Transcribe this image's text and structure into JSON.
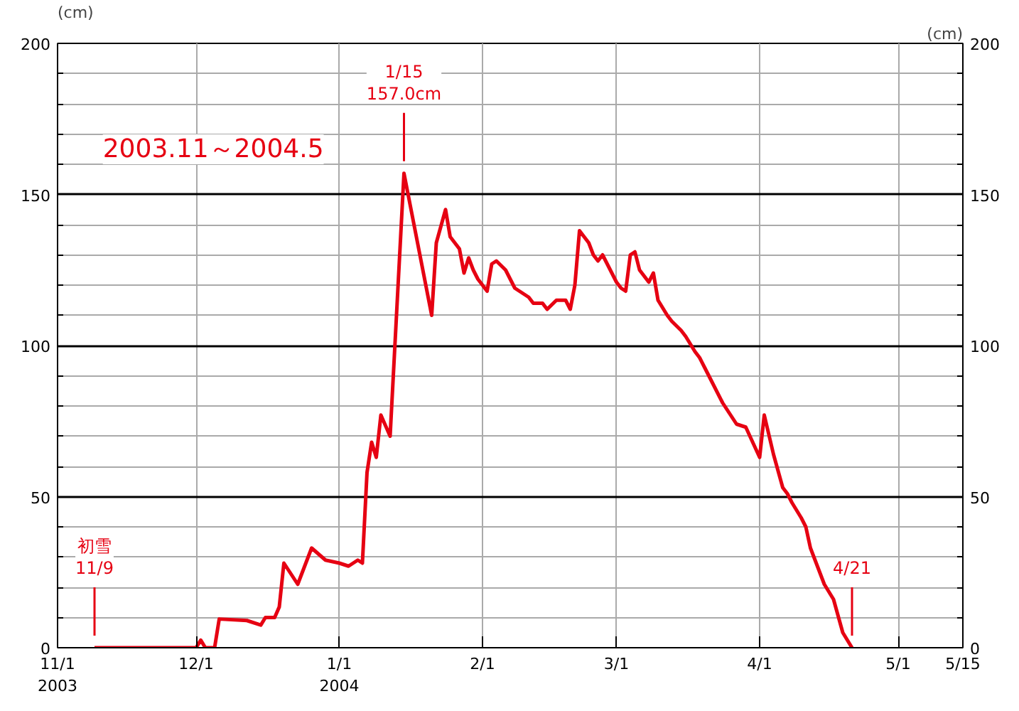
{
  "chart_data": {
    "type": "line",
    "ylabel": "(cm)",
    "y2label": "(cm)",
    "annotations": [
      "2003.11～2004.5",
      {
        "text": "1/15\n157.0cm",
        "x": "2004-01-15",
        "y": 157.0
      },
      {
        "text": "初雪\n11/9",
        "x": "2003-11-09",
        "y": 0
      },
      {
        "text": "4/21",
        "x": "2004-04-21",
        "y": 0
      }
    ],
    "xlim": [
      "2003-11-01",
      "2004-05-15"
    ],
    "xticks": [
      {
        "value": "2003-11-01",
        "label": "11/1\n2003"
      },
      {
        "value": "2003-12-01",
        "label": "12/1"
      },
      {
        "value": "2004-01-01",
        "label": "1/1\n2004"
      },
      {
        "value": "2004-02-01",
        "label": "2/1"
      },
      {
        "value": "2004-03-01",
        "label": "3/1"
      },
      {
        "value": "2004-04-01",
        "label": "4/1"
      },
      {
        "value": "2004-05-01",
        "label": "5/1"
      },
      {
        "value": "2004-05-15",
        "label": "5/15"
      }
    ],
    "ylim": [
      0,
      200
    ],
    "yticks": [
      0,
      50,
      100,
      150,
      200
    ],
    "y2lim": [
      0,
      200
    ],
    "y2ticks": [
      0,
      50,
      100,
      150,
      200
    ],
    "grid": true,
    "marker": "none",
    "line_style": "solid",
    "series": [
      {
        "color": "#e60012",
        "x": [
          "2003-11-09",
          "2003-12-01",
          "2003-12-02",
          "2003-12-03",
          "2003-12-05",
          "2003-12-06",
          "2003-12-12",
          "2003-12-15",
          "2003-12-16",
          "2003-12-18",
          "2003-12-19",
          "2003-12-20",
          "2003-12-23",
          "2003-12-26",
          "2003-12-29",
          "2004-01-01",
          "2004-01-03",
          "2004-01-05",
          "2004-01-06",
          "2004-01-07",
          "2004-01-08",
          "2004-01-09",
          "2004-01-10",
          "2004-01-12",
          "2004-01-15",
          "2004-01-21",
          "2004-01-22",
          "2004-01-24",
          "2004-01-25",
          "2004-01-27",
          "2004-01-28",
          "2004-01-29",
          "2004-01-30",
          "2004-01-31",
          "2004-02-01",
          "2004-02-02",
          "2004-02-03",
          "2004-02-04",
          "2004-02-06",
          "2004-02-07",
          "2004-02-08",
          "2004-02-10",
          "2004-02-11",
          "2004-02-12",
          "2004-02-14",
          "2004-02-15",
          "2004-02-17",
          "2004-02-19",
          "2004-02-20",
          "2004-02-21",
          "2004-02-22",
          "2004-02-24",
          "2004-02-25",
          "2004-02-26",
          "2004-02-27",
          "2004-03-01",
          "2004-03-02",
          "2004-03-03",
          "2004-03-04",
          "2004-03-05",
          "2004-03-06",
          "2004-03-08",
          "2004-03-09",
          "2004-03-10",
          "2004-03-12",
          "2004-03-13",
          "2004-03-15",
          "2004-03-16",
          "2004-03-18",
          "2004-03-19",
          "2004-03-20",
          "2004-03-21",
          "2004-03-24",
          "2004-03-27",
          "2004-03-29",
          "2004-04-01",
          "2004-04-02",
          "2004-04-04",
          "2004-04-06",
          "2004-04-07",
          "2004-04-08",
          "2004-04-10",
          "2004-04-11",
          "2004-04-12",
          "2004-04-15",
          "2004-04-17",
          "2004-04-19",
          "2004-04-21"
        ],
        "values": [
          0,
          0,
          2.5,
          0,
          0,
          9.5,
          9,
          7.5,
          10,
          10,
          13.5,
          28,
          21,
          33,
          29,
          28,
          27,
          29,
          28,
          58,
          68,
          63,
          77,
          70,
          157.0,
          110,
          134,
          145,
          136,
          132,
          124,
          129,
          125,
          122,
          120,
          118,
          127,
          128,
          125,
          122,
          119,
          117,
          116,
          114,
          114,
          112,
          115,
          115,
          112,
          120,
          138,
          134,
          130,
          128,
          130,
          121,
          119,
          118,
          130,
          131,
          125,
          121,
          124,
          115,
          110,
          108,
          105,
          103,
          98,
          96,
          93,
          90,
          81,
          74,
          73,
          63,
          77,
          64,
          53,
          51,
          48,
          43,
          40,
          33,
          21,
          16,
          5,
          0
        ]
      }
    ]
  }
}
